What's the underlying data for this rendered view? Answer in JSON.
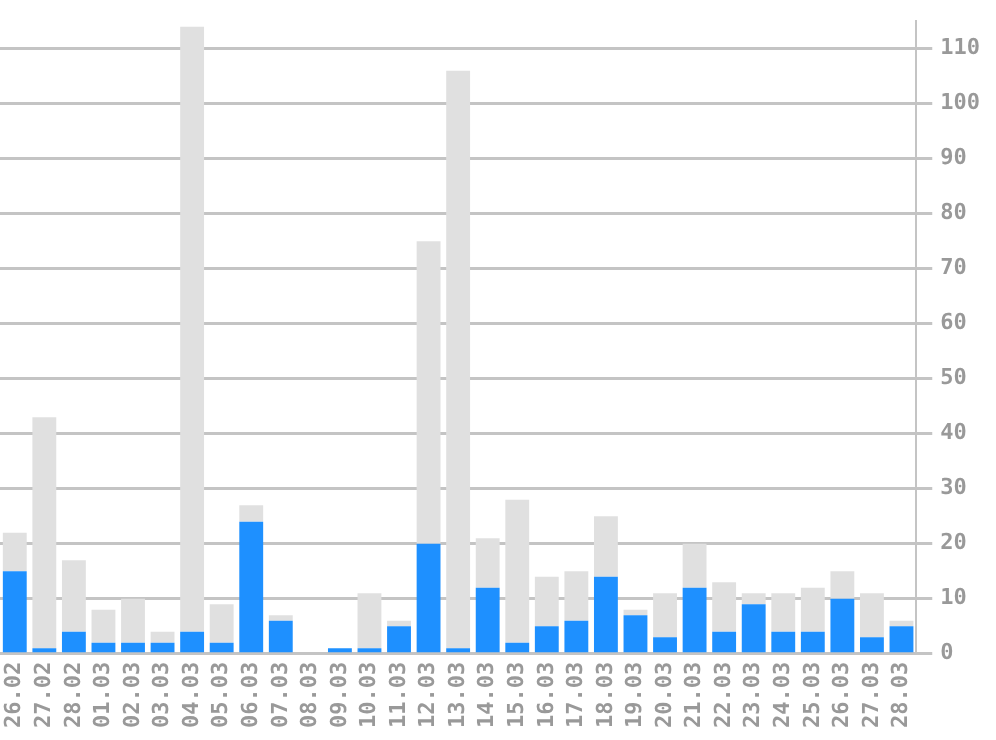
{
  "chart_data": {
    "type": "bar",
    "categories": [
      "26.02",
      "27.02",
      "28.02",
      "01.03",
      "02.03",
      "03.03",
      "04.03",
      "05.03",
      "06.03",
      "07.03",
      "08.03",
      "09.03",
      "10.03",
      "11.03",
      "12.03",
      "13.03",
      "14.03",
      "15.03",
      "16.03",
      "17.03",
      "18.03",
      "19.03",
      "20.03",
      "21.03",
      "22.03",
      "23.03",
      "24.03",
      "25.03",
      "26.03",
      "27.03",
      "28.03"
    ],
    "stacked": true,
    "series": [
      {
        "color": "#1e90ff",
        "values": [
          15,
          1,
          4,
          2,
          2,
          2,
          4,
          2,
          24,
          6,
          0,
          1,
          1,
          5,
          20,
          1,
          12,
          2,
          5,
          6,
          14,
          7,
          3,
          12,
          4,
          9,
          4,
          4,
          10,
          3,
          5
        ]
      },
      {
        "color": "#e0e0e0",
        "values": [
          7,
          42,
          13,
          6,
          8,
          2,
          110,
          7,
          3,
          1,
          0,
          0,
          10,
          1,
          55,
          105,
          9,
          26,
          9,
          9,
          11,
          1,
          8,
          8,
          9,
          2,
          7,
          8,
          5,
          8,
          1
        ]
      }
    ],
    "ylim": [
      0,
      115
    ],
    "yticks": [
      0,
      10,
      20,
      30,
      40,
      50,
      60,
      70,
      80,
      90,
      100,
      110
    ],
    "grid": "y",
    "legend": false
  }
}
